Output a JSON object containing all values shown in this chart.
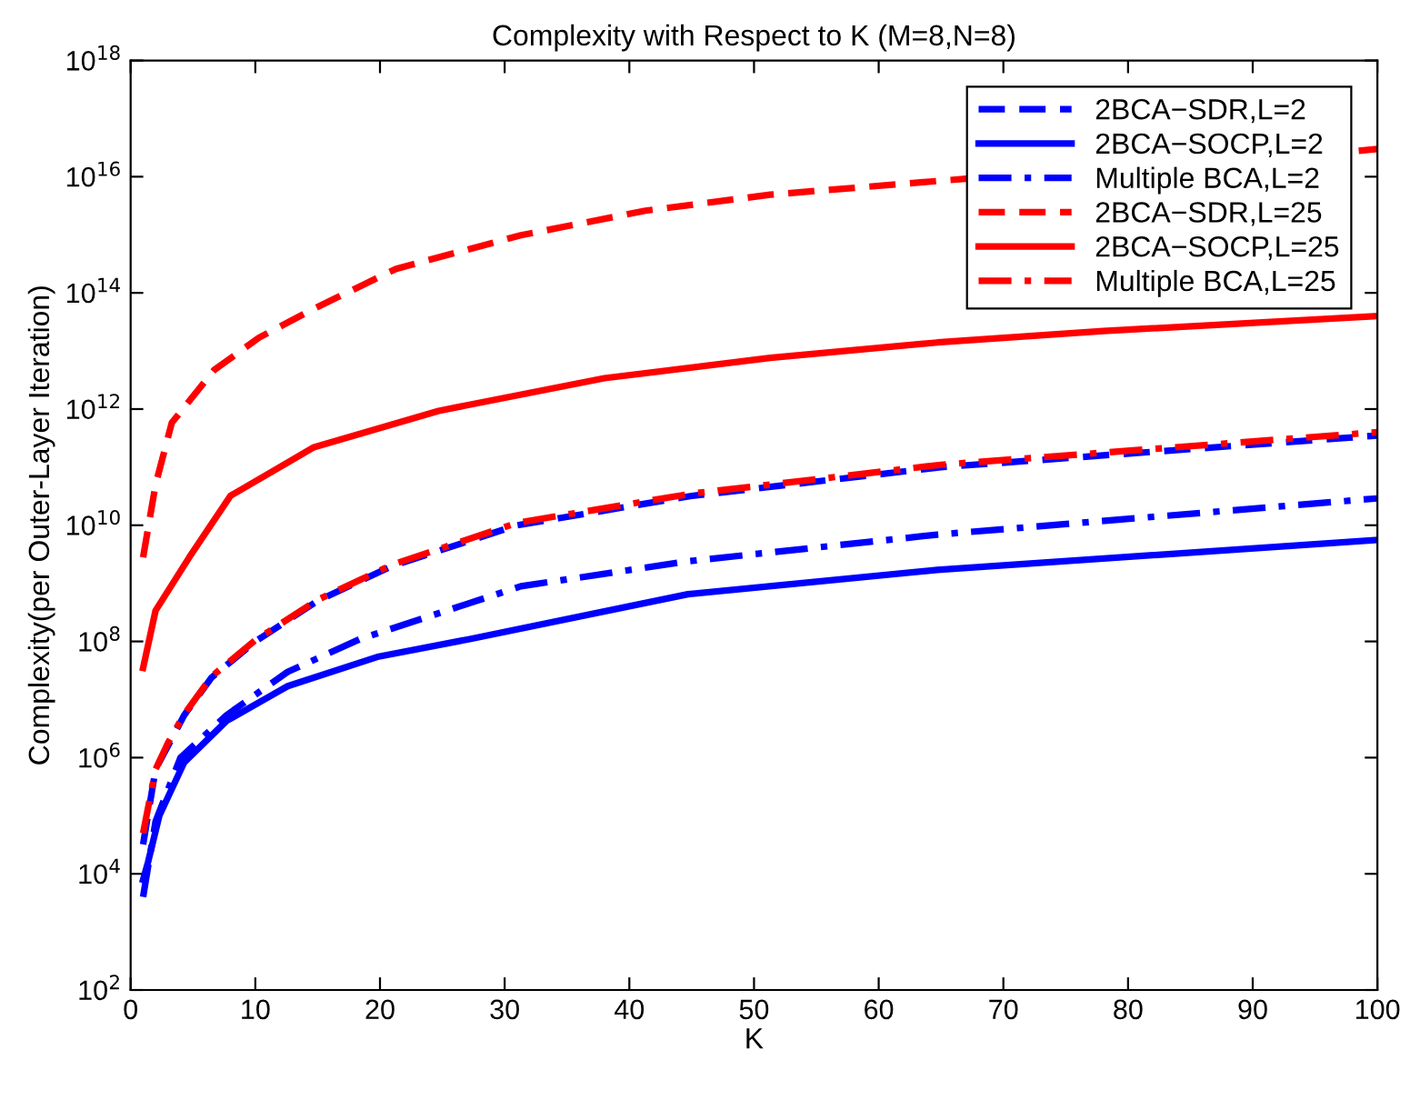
{
  "chart_data": {
    "type": "line",
    "title": "Complexity with Respect to K (M=8,N=8)",
    "xlabel": "K",
    "ylabel": "Complexity(per Outer-Layer Iteration)",
    "log": "y",
    "xlim": [
      0,
      100
    ],
    "xticks": [
      0,
      10,
      20,
      30,
      40,
      50,
      60,
      70,
      80,
      90,
      100
    ],
    "ylim": [
      100,
      1e+18
    ],
    "yticks": [
      {
        "value": 100,
        "label": "10$^{2}$"
      },
      {
        "value": 10000.0,
        "label": "10$^{4}$"
      },
      {
        "value": 1000000.0,
        "label": "10$^{6}$"
      },
      {
        "value": 100000000.0,
        "label": "10$^{8}$"
      },
      {
        "value": 10000000000.0,
        "label": "10$^{10}$"
      },
      {
        "value": 1000000000000.0,
        "label": "10$^{12}$"
      },
      {
        "value": 100000000000000.0,
        "label": "10$^{14}$"
      },
      {
        "value": 1e+16,
        "label": "10$^{16}$"
      },
      {
        "value": 1e+18,
        "label": "10$^{18}$"
      }
    ],
    "grid": false,
    "legend": "top right",
    "marker": "none",
    "series": [
      {
        "name": "2BCA−SDR,L=2",
        "color": "#0000ff",
        "line_style": "dashed",
        "x": [
          1,
          2,
          3,
          4.3,
          6.5,
          10,
          15,
          21,
          31,
          45,
          65,
          100
        ],
        "values": [
          32000.0,
          630000.0,
          1600000.0,
          5400000.0,
          24000000.0,
          100000000.0,
          500000000.0,
          2000000000.0,
          10000000000.0,
          32000000000.0,
          100000000000.0,
          350000000000.0
        ]
      },
      {
        "name": "2BCA−SOCP,L=2",
        "color": "#0000ff",
        "line_style": "solid",
        "x": [
          1,
          1.4,
          2.3,
          4.3,
          7.7,
          12.6,
          19.9,
          27.2,
          44.7,
          64.7,
          100
        ],
        "values": [
          7900.0,
          16000.0,
          100000.0,
          830000.0,
          4300000.0,
          17000000.0,
          55000000.0,
          110000000.0,
          650000000.0,
          1700000000.0,
          5600000000.0
        ]
      },
      {
        "name": "Multiple BCA,L=2",
        "color": "#0000ff",
        "line_style": "dashdot",
        "x": [
          1,
          2,
          4,
          7.7,
          12.6,
          18.4,
          31.3,
          44.7,
          64.7,
          100
        ],
        "values": [
          4000.0,
          80000.0,
          1000000.0,
          5400000.0,
          30000000.0,
          110000000.0,
          890000000.0,
          2400000000.0,
          6900000000.0,
          29000000000.0
        ]
      },
      {
        "name": "2BCA−SDR,L=25",
        "color": "#ff0000",
        "line_style": "dashed",
        "x": [
          1,
          2,
          3.3,
          6.7,
          10.3,
          14.6,
          21.3,
          31.3,
          41.3,
          51.3,
          67.2,
          85,
          98.5,
          100
        ],
        "values": [
          2800000000.0,
          50000000000.0,
          580000000000.0,
          4700000000000.0,
          17000000000000.0,
          52000000000000.0,
          260000000000000.0,
          980000000000000.0,
          2600000000000000.0,
          4900000000000000.0,
          9300000000000000.0,
          null,
          2.8e+16,
          3e+16
        ]
      },
      {
        "name": "2BCA−SOCP,L=25",
        "color": "#ff0000",
        "line_style": "solid",
        "x": [
          1,
          2,
          4.7,
          8,
          14.7,
          24.7,
          38,
          51.3,
          64.7,
          78,
          100
        ],
        "values": [
          35000000.0,
          340000000.0,
          2800000000.0,
          32000000000.0,
          220000000000.0,
          930000000000.0,
          3400000000000.0,
          7600000000000.0,
          14000000000000.0,
          22000000000000.0,
          40000000000000.0
        ]
      },
      {
        "name": "Multiple BCA,L=25",
        "color": "#ff0000",
        "line_style": "dashdot",
        "x": [
          1,
          2,
          3,
          4.3,
          6.5,
          10,
          15,
          21,
          31,
          45,
          65,
          100
        ],
        "values": [
          50000.0,
          630000.0,
          1800000.0,
          5600000.0,
          25000000.0,
          105000000.0,
          520000000.0,
          2100000000.0,
          11000000000.0,
          35000000000.0,
          110000000000.0,
          400000000000.0
        ]
      }
    ]
  }
}
